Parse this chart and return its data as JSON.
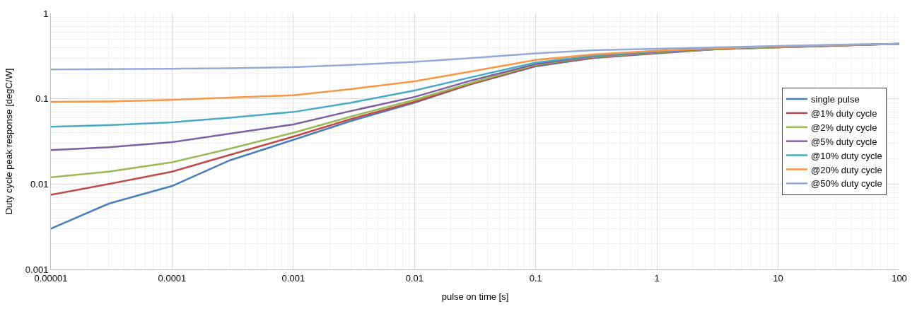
{
  "chart_data": {
    "type": "line",
    "xlabel": "pulse on time [s]",
    "ylabel": "Duty cycle peak response [degC/W]",
    "x": [
      1e-05,
      3e-05,
      0.0001,
      0.0003,
      0.001,
      0.003,
      0.01,
      0.03,
      0.1,
      0.3,
      1,
      3,
      10,
      30,
      100
    ],
    "series": [
      {
        "name": "single pulse",
        "color": "#4a7ebb",
        "values": [
          0.003,
          0.0059,
          0.0095,
          0.019,
          0.033,
          0.055,
          0.09,
          0.15,
          0.24,
          0.3,
          0.34,
          0.38,
          0.4,
          0.42,
          0.44
        ]
      },
      {
        "name": "@1% duty cycle",
        "color": "#be4b48",
        "values": [
          0.0075,
          0.01,
          0.014,
          0.022,
          0.036,
          0.058,
          0.092,
          0.15,
          0.245,
          0.305,
          0.345,
          0.38,
          0.4,
          0.42,
          0.44
        ]
      },
      {
        "name": "@2% duty cycle",
        "color": "#98b954",
        "values": [
          0.012,
          0.014,
          0.018,
          0.026,
          0.04,
          0.062,
          0.097,
          0.155,
          0.25,
          0.31,
          0.35,
          0.38,
          0.4,
          0.42,
          0.44
        ]
      },
      {
        "name": "@5% duty cycle",
        "color": "#7d60a0",
        "values": [
          0.025,
          0.027,
          0.031,
          0.039,
          0.05,
          0.072,
          0.105,
          0.165,
          0.255,
          0.315,
          0.355,
          0.385,
          0.405,
          0.42,
          0.44
        ]
      },
      {
        "name": "@10% duty cycle",
        "color": "#46aac5",
        "values": [
          0.047,
          0.049,
          0.053,
          0.06,
          0.07,
          0.09,
          0.125,
          0.18,
          0.265,
          0.32,
          0.36,
          0.39,
          0.41,
          0.425,
          0.44
        ]
      },
      {
        "name": "@20% duty cycle",
        "color": "#f79646",
        "values": [
          0.092,
          0.093,
          0.097,
          0.103,
          0.11,
          0.13,
          0.16,
          0.21,
          0.285,
          0.33,
          0.365,
          0.39,
          0.41,
          0.425,
          0.44
        ]
      },
      {
        "name": "@50% duty cycle",
        "color": "#94aad6",
        "values": [
          0.22,
          0.222,
          0.225,
          0.228,
          0.235,
          0.25,
          0.27,
          0.3,
          0.34,
          0.37,
          0.385,
          0.4,
          0.415,
          0.43,
          0.44
        ]
      }
    ],
    "log": "xy",
    "xlim": [
      1e-05,
      100
    ],
    "ylim": [
      0.001,
      1
    ],
    "xticks": [
      {
        "value": 1e-05,
        "label": "0.00001"
      },
      0.0001,
      0.001,
      0.01,
      0.1,
      1,
      10,
      100
    ],
    "yticks": [
      0.001,
      0.01,
      0.1,
      1
    ],
    "grid": true,
    "legend": "right",
    "marker": "none",
    "line_style": "solid"
  }
}
